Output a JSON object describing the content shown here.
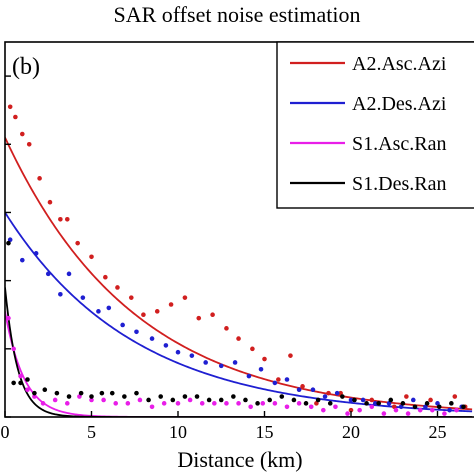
{
  "chart_data": {
    "type": "scatter",
    "title": "SAR offset noise estimation",
    "panel_label": "(b)",
    "xlabel": "Distance (km)",
    "ylabel": "",
    "xlim": [
      0,
      27
    ],
    "ylim": [
      0.0,
      1.1
    ],
    "xticks": [
      "0",
      "5",
      "10",
      "15",
      "20",
      "25"
    ],
    "xtick_values": [
      0,
      5,
      10,
      15,
      20,
      25
    ],
    "ytick_values": [
      0.0,
      0.2,
      0.4,
      0.6,
      0.8,
      1.0
    ],
    "legend_position": "top-right",
    "grid": false,
    "series": [
      {
        "name": "A2.Asc.Azi",
        "color": "#d11f1f",
        "fit": {
          "sill": 0.82,
          "range_km": 7.5,
          "nugget": 0.0
        },
        "points": [
          [
            0.3,
            0.91
          ],
          [
            0.6,
            0.88
          ],
          [
            1.0,
            0.83
          ],
          [
            1.4,
            0.8
          ],
          [
            2.0,
            0.7
          ],
          [
            2.6,
            0.63
          ],
          [
            3.2,
            0.58
          ],
          [
            3.6,
            0.58
          ],
          [
            4.2,
            0.51
          ],
          [
            5.0,
            0.47
          ],
          [
            5.8,
            0.41
          ],
          [
            6.5,
            0.38
          ],
          [
            7.3,
            0.35
          ],
          [
            8.0,
            0.3
          ],
          [
            8.8,
            0.31
          ],
          [
            9.6,
            0.33
          ],
          [
            10.4,
            0.35
          ],
          [
            11.2,
            0.29
          ],
          [
            12.0,
            0.3
          ],
          [
            12.8,
            0.26
          ],
          [
            13.5,
            0.23
          ],
          [
            14.3,
            0.2
          ],
          [
            15.0,
            0.17
          ],
          [
            15.8,
            0.11
          ],
          [
            16.5,
            0.18
          ],
          [
            17.2,
            0.09
          ],
          [
            18.0,
            0.04
          ],
          [
            18.7,
            0.07
          ],
          [
            19.4,
            0.07
          ],
          [
            20.0,
            0.02
          ],
          [
            20.6,
            -0.02
          ],
          [
            21.2,
            0.05
          ],
          [
            21.8,
            -0.04
          ],
          [
            22.5,
            0.03
          ],
          [
            23.2,
            0.06
          ],
          [
            23.9,
            -0.03
          ],
          [
            24.6,
            0.05
          ],
          [
            25.3,
            -0.03
          ],
          [
            26.0,
            0.06
          ],
          [
            26.6,
            0.03
          ]
        ]
      },
      {
        "name": "A2.Des.Azi",
        "color": "#1f1fd1",
        "fit": {
          "sill": 0.6,
          "range_km": 7.5,
          "nugget": 0.0
        },
        "points": [
          [
            0.3,
            0.52
          ],
          [
            1.0,
            0.46
          ],
          [
            1.8,
            0.48
          ],
          [
            2.5,
            0.42
          ],
          [
            3.2,
            0.36
          ],
          [
            3.7,
            0.42
          ],
          [
            4.5,
            0.35
          ],
          [
            5.4,
            0.31
          ],
          [
            6.0,
            0.32
          ],
          [
            6.8,
            0.27
          ],
          [
            7.6,
            0.25
          ],
          [
            8.5,
            0.23
          ],
          [
            9.3,
            0.21
          ],
          [
            10.0,
            0.19
          ],
          [
            10.8,
            0.18
          ],
          [
            11.6,
            0.16
          ],
          [
            12.5,
            0.15
          ],
          [
            13.3,
            0.16
          ],
          [
            14.1,
            0.12
          ],
          [
            14.8,
            0.14
          ],
          [
            15.6,
            0.1
          ],
          [
            16.3,
            0.11
          ],
          [
            17.0,
            0.08
          ],
          [
            17.8,
            0.08
          ],
          [
            18.5,
            0.06
          ],
          [
            19.2,
            0.07
          ],
          [
            20.0,
            0.05
          ],
          [
            20.7,
            0.05
          ],
          [
            21.4,
            0.04
          ],
          [
            22.2,
            0.04
          ],
          [
            22.9,
            0.03
          ],
          [
            23.6,
            0.05
          ],
          [
            24.3,
            0.03
          ],
          [
            25.0,
            0.04
          ],
          [
            25.7,
            0.02
          ],
          [
            26.4,
            0.03
          ]
        ]
      },
      {
        "name": "S1.Asc.Ran",
        "color": "#e81ee8",
        "fit": {
          "sill": 0.31,
          "range_km": 1.1,
          "nugget": 0.0
        },
        "points": [
          [
            0.2,
            0.29
          ],
          [
            0.5,
            0.2
          ],
          [
            0.9,
            0.12
          ],
          [
            1.3,
            0.08
          ],
          [
            1.7,
            0.06
          ],
          [
            2.2,
            0.04
          ],
          [
            2.9,
            0.05
          ],
          [
            3.6,
            0.04
          ],
          [
            4.3,
            0.06
          ],
          [
            5.0,
            0.05
          ],
          [
            5.7,
            0.05
          ],
          [
            6.4,
            0.04
          ],
          [
            7.1,
            0.04
          ],
          [
            7.8,
            0.05
          ],
          [
            8.5,
            0.03
          ],
          [
            9.2,
            0.04
          ],
          [
            10.0,
            0.04
          ],
          [
            10.7,
            0.05
          ],
          [
            11.4,
            0.04
          ],
          [
            12.1,
            0.04
          ],
          [
            12.8,
            0.04
          ],
          [
            13.5,
            0.04
          ],
          [
            14.2,
            0.03
          ],
          [
            14.9,
            0.04
          ],
          [
            15.6,
            0.04
          ],
          [
            16.3,
            0.03
          ],
          [
            17.0,
            0.04
          ],
          [
            17.7,
            0.03
          ],
          [
            18.4,
            0.02
          ],
          [
            19.1,
            0.03
          ],
          [
            19.8,
            0.01
          ],
          [
            20.5,
            0.02
          ],
          [
            21.2,
            0.03
          ],
          [
            21.9,
            0.01
          ],
          [
            22.6,
            0.02
          ],
          [
            23.3,
            0.01
          ],
          [
            24.0,
            0.02
          ],
          [
            24.7,
            0.02
          ],
          [
            25.4,
            0.01
          ],
          [
            26.1,
            0.02
          ]
        ]
      },
      {
        "name": "S1.Des.Ran",
        "color": "#000000",
        "fit": {
          "sill": 0.38,
          "range_km": 0.75,
          "nugget": 0.0
        },
        "points": [
          [
            0.2,
            0.51
          ],
          [
            0.5,
            0.1
          ],
          [
            0.9,
            0.1
          ],
          [
            1.3,
            0.11
          ],
          [
            1.7,
            0.07
          ],
          [
            2.3,
            0.08
          ],
          [
            3.0,
            0.07
          ],
          [
            3.7,
            0.06
          ],
          [
            4.4,
            0.07
          ],
          [
            5.0,
            0.06
          ],
          [
            5.6,
            0.07
          ],
          [
            6.2,
            0.07
          ],
          [
            6.9,
            0.06
          ],
          [
            7.6,
            0.07
          ],
          [
            8.3,
            0.05
          ],
          [
            9.0,
            0.06
          ],
          [
            9.7,
            0.05
          ],
          [
            10.4,
            0.06
          ],
          [
            11.1,
            0.06
          ],
          [
            11.8,
            0.05
          ],
          [
            12.5,
            0.05
          ],
          [
            13.2,
            0.06
          ],
          [
            13.9,
            0.05
          ],
          [
            14.6,
            0.04
          ],
          [
            15.3,
            0.05
          ],
          [
            16.0,
            0.06
          ],
          [
            16.7,
            0.05
          ],
          [
            17.4,
            0.04
          ],
          [
            18.1,
            0.05
          ],
          [
            18.8,
            0.04
          ],
          [
            19.5,
            0.06
          ],
          [
            20.2,
            0.05
          ],
          [
            20.9,
            0.04
          ],
          [
            21.6,
            0.04
          ],
          [
            22.3,
            0.05
          ],
          [
            23.0,
            0.04
          ],
          [
            23.7,
            0.03
          ],
          [
            24.4,
            0.04
          ],
          [
            25.1,
            0.03
          ],
          [
            25.8,
            0.04
          ],
          [
            26.5,
            0.03
          ]
        ]
      }
    ]
  }
}
